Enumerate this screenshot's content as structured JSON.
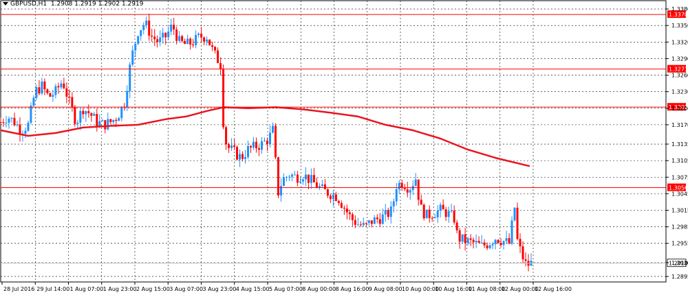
{
  "header": {
    "symbol_timeframe": "GBPUSD,H1",
    "ohlc": "1.2908 1.2919 1.2902 1.2919"
  },
  "colors": {
    "background": "#ffffff",
    "grid": "#000000",
    "candle_up": "#1e90ff",
    "candle_down": "#ff0000",
    "moving_average": "#e8141e",
    "level_line": "#ff0000",
    "price_tag_fill": "#ff0000",
    "current_line": "#c0c0c0"
  },
  "chart_data": {
    "type": "candlestick",
    "instrument": "GBPUSD",
    "timeframe": "H1",
    "grid": true,
    "ylim": [
      1.2885,
      1.3395
    ],
    "y_ticks": [
      "1.3380",
      "1.3350",
      "1.3320",
      "1.3290",
      "1.3260",
      "1.3230",
      "1.3200",
      "1.3170",
      "1.3135",
      "1.3105",
      "1.3075",
      "1.3045",
      "1.3015",
      "1.2985",
      "1.2955",
      "1.2920",
      "1.2895"
    ],
    "x_ticks": [
      "28 Jul 2016",
      "29 Jul 14:00",
      "1 Aug 07:00",
      "1 Aug 23:00",
      "2 Aug 15:00",
      "3 Aug 07:00",
      "3 Aug 23:00",
      "4 Aug 15:00",
      "5 Aug 07:00",
      "8 Aug 00:00",
      "8 Aug 16:00",
      "9 Aug 08:00",
      "10 Aug 00:00",
      "10 Aug 16:00",
      "11 Aug 08:00",
      "12 Aug 00:00",
      "12 Aug 16:00"
    ],
    "horizontal_levels": [
      "1.3370",
      "1.3271",
      "1.3202",
      "1.3056"
    ],
    "current_price": "1.2919",
    "close_path": [
      [
        0,
        1.3175
      ],
      [
        10,
        1.3185
      ],
      [
        20,
        1.3175
      ],
      [
        30,
        1.316
      ],
      [
        40,
        1.317
      ],
      [
        50,
        1.323
      ],
      [
        60,
        1.324
      ],
      [
        70,
        1.322
      ],
      [
        80,
        1.323
      ],
      [
        90,
        1.325
      ],
      [
        100,
        1.321
      ],
      [
        110,
        1.3175
      ],
      [
        120,
        1.32
      ],
      [
        130,
        1.319
      ],
      [
        140,
        1.3175
      ],
      [
        150,
        1.317
      ],
      [
        160,
        1.3175
      ],
      [
        170,
        1.3185
      ],
      [
        180,
        1.321
      ],
      [
        190,
        1.329
      ],
      [
        200,
        1.334
      ],
      [
        210,
        1.3355
      ],
      [
        220,
        1.333
      ],
      [
        230,
        1.332
      ],
      [
        240,
        1.333
      ],
      [
        250,
        1.335
      ],
      [
        260,
        1.332
      ],
      [
        270,
        1.3315
      ],
      [
        280,
        1.332
      ],
      [
        290,
        1.333
      ],
      [
        300,
        1.333
      ],
      [
        310,
        1.33
      ],
      [
        320,
        1.328
      ],
      [
        325,
        1.315
      ],
      [
        330,
        1.313
      ],
      [
        340,
        1.312
      ],
      [
        350,
        1.311
      ],
      [
        360,
        1.3125
      ],
      [
        370,
        1.313
      ],
      [
        380,
        1.3135
      ],
      [
        390,
        1.3145
      ],
      [
        398,
        1.3165
      ],
      [
        402,
        1.304
      ],
      [
        410,
        1.307
      ],
      [
        420,
        1.308
      ],
      [
        430,
        1.3075
      ],
      [
        440,
        1.308
      ],
      [
        450,
        1.307
      ],
      [
        460,
        1.306
      ],
      [
        470,
        1.305
      ],
      [
        480,
        1.3045
      ],
      [
        490,
        1.304
      ],
      [
        500,
        1.302
      ],
      [
        510,
        1.3
      ],
      [
        520,
        1.299
      ],
      [
        530,
        1.2985
      ],
      [
        540,
        1.2995
      ],
      [
        550,
        1.3
      ],
      [
        560,
        1.3005
      ],
      [
        570,
        1.3015
      ],
      [
        575,
        1.306
      ],
      [
        585,
        1.3065
      ],
      [
        595,
        1.3055
      ],
      [
        605,
        1.3075
      ],
      [
        610,
        1.302
      ],
      [
        620,
        1.3005
      ],
      [
        630,
        1.301
      ],
      [
        640,
        1.3015
      ],
      [
        650,
        1.301
      ],
      [
        660,
        1.3
      ],
      [
        665,
        1.2965
      ],
      [
        675,
        1.296
      ],
      [
        690,
        1.2955
      ],
      [
        700,
        1.295
      ],
      [
        710,
        1.2955
      ],
      [
        720,
        1.2965
      ],
      [
        730,
        1.296
      ],
      [
        740,
        1.2955
      ],
      [
        748,
        1.302
      ],
      [
        752,
        1.296
      ],
      [
        758,
        1.2935
      ],
      [
        765,
        1.2915
      ],
      [
        772,
        1.2919
      ]
    ],
    "moving_average": [
      [
        0,
        1.316
      ],
      [
        40,
        1.315
      ],
      [
        80,
        1.3155
      ],
      [
        120,
        1.3165
      ],
      [
        160,
        1.3168
      ],
      [
        200,
        1.317
      ],
      [
        240,
        1.318
      ],
      [
        270,
        1.3185
      ],
      [
        300,
        1.3195
      ],
      [
        325,
        1.3202
      ],
      [
        360,
        1.32
      ],
      [
        400,
        1.3202
      ],
      [
        440,
        1.3198
      ],
      [
        480,
        1.3192
      ],
      [
        520,
        1.3185
      ],
      [
        560,
        1.317
      ],
      [
        600,
        1.316
      ],
      [
        640,
        1.3145
      ],
      [
        680,
        1.3125
      ],
      [
        720,
        1.311
      ],
      [
        770,
        1.3095
      ]
    ]
  }
}
